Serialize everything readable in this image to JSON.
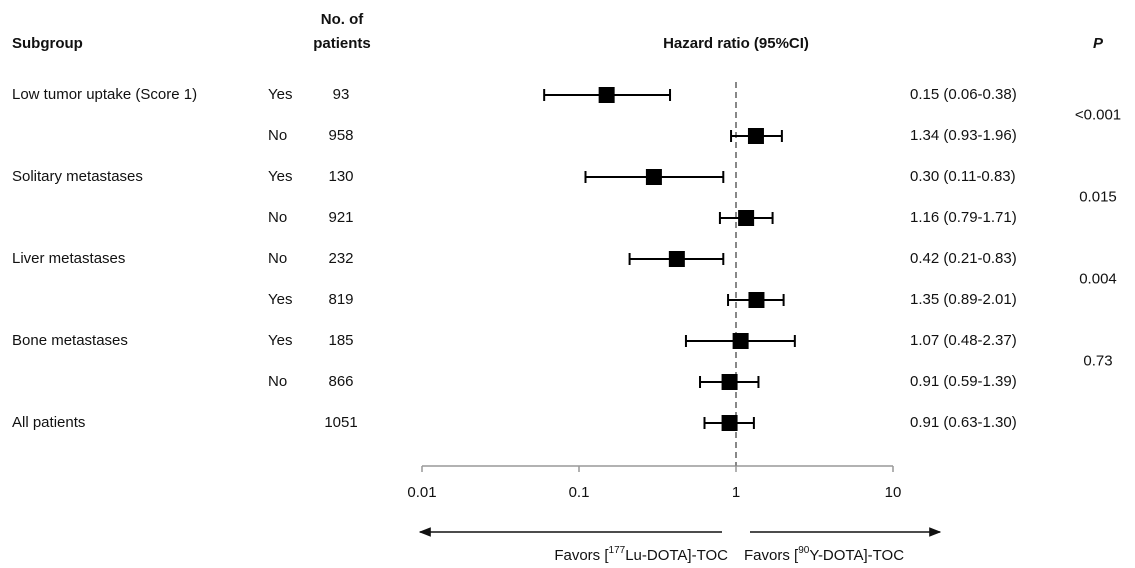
{
  "chart_data": {
    "type": "forest",
    "headers": {
      "subgroup": "Subgroup",
      "n": [
        "No. of",
        "patients"
      ],
      "hr": "Hazard ratio (95%CI)",
      "p": "P"
    },
    "groups": [
      {
        "name": "Low tumor uptake (Score 1)",
        "p": "<0.001",
        "rows": [
          {
            "level": "Yes",
            "n": 93,
            "hr": 0.15,
            "lower": 0.06,
            "upper": 0.38,
            "value_label": "0.15 (0.06-0.38)"
          },
          {
            "level": "No",
            "n": 958,
            "hr": 1.34,
            "lower": 0.93,
            "upper": 1.96,
            "value_label": "1.34 (0.93-1.96)"
          }
        ]
      },
      {
        "name": "Solitary metastases",
        "p": "0.015",
        "rows": [
          {
            "level": "Yes",
            "n": 130,
            "hr": 0.3,
            "lower": 0.11,
            "upper": 0.83,
            "value_label": "0.30 (0.11-0.83)"
          },
          {
            "level": "No",
            "n": 921,
            "hr": 1.16,
            "lower": 0.79,
            "upper": 1.71,
            "value_label": "1.16 (0.79-1.71)"
          }
        ]
      },
      {
        "name": "Liver metastases",
        "p": "0.004",
        "rows": [
          {
            "level": "No",
            "n": 232,
            "hr": 0.42,
            "lower": 0.21,
            "upper": 0.83,
            "value_label": "0.42 (0.21-0.83)"
          },
          {
            "level": "Yes",
            "n": 819,
            "hr": 1.35,
            "lower": 0.89,
            "upper": 2.01,
            "value_label": "1.35 (0.89-2.01)"
          }
        ]
      },
      {
        "name": "Bone metastases",
        "p": "0.73",
        "rows": [
          {
            "level": "Yes",
            "n": 185,
            "hr": 1.07,
            "lower": 0.48,
            "upper": 2.37,
            "value_label": "1.07 (0.48-2.37)"
          },
          {
            "level": "No",
            "n": 866,
            "hr": 0.91,
            "lower": 0.59,
            "upper": 1.39,
            "value_label": "0.91 (0.59-1.39)"
          }
        ]
      },
      {
        "name": "All patients",
        "rows": [
          {
            "n": 1051,
            "hr": 0.91,
            "lower": 0.63,
            "upper": 1.3,
            "value_label": "0.91 (0.63-1.30)"
          }
        ]
      }
    ],
    "xscale": "log",
    "xlim": [
      0.01,
      10
    ],
    "xticks": [
      0.01,
      0.1,
      1,
      10
    ],
    "reference_line": 1,
    "color": "#000000",
    "left_label": {
      "prefix": "Favors [",
      "sup": "177",
      "suffix": "Lu-DOTA]-TOC"
    },
    "right_label": {
      "prefix": "Favors [",
      "sup": "90",
      "suffix": "Y-DOTA]-TOC"
    }
  }
}
